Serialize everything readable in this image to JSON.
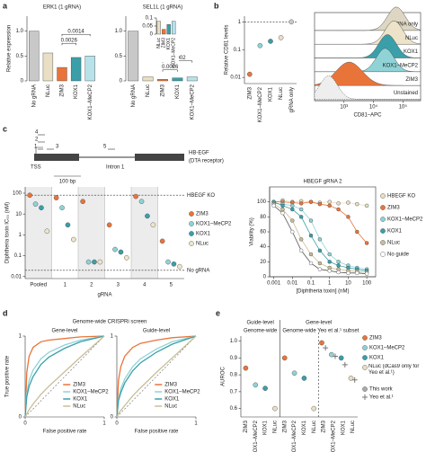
{
  "panels": [
    "a",
    "b",
    "c",
    "d",
    "e"
  ],
  "gene_diagram": {
    "guides": [
      "4",
      "2",
      "1",
      "3",
      "5"
    ],
    "tss": "TSS",
    "intron": "Intron 1",
    "gene": "HB-EGF",
    "receptor": "(DTA receptor)",
    "scale": "100 bp"
  },
  "chart_data": [
    {
      "type": "bar",
      "title": "ERK1 (1 gRNA)",
      "ylabel": "Relative expression",
      "categories": [
        "No gRNA",
        "NLuc",
        "ZIM3",
        "KOX1",
        "KOX1–MeCP2"
      ],
      "values": [
        1.0,
        0.56,
        0.27,
        0.47,
        0.5
      ],
      "colors": [
        "#c8c8c8",
        "#e9dfc4",
        "#e9743a",
        "#3a9fa8",
        "#b7e2ea"
      ],
      "ylim": [
        0,
        1.3
      ],
      "yticks": [
        0,
        0.5,
        {
          "value": 1,
          "label": "1.0"
        }
      ],
      "annotations": [
        "0.0026",
        "0.0014"
      ]
    },
    {
      "type": "bar",
      "title": "SEL1L (1 gRNA)",
      "categories": [
        "No gRNA",
        "NLuc",
        "ZIM3",
        "KOX1",
        "KOX1–MeCP2"
      ],
      "values": [
        1.0,
        0.08,
        0.03,
        0.06,
        0.08
      ],
      "colors": [
        "#c8c8c8",
        "#e9dfc4",
        "#e9743a",
        "#3a9fa8",
        "#b7e2ea"
      ],
      "ylim": [
        0,
        1.3
      ],
      "yticks": [
        0,
        0.5,
        {
          "value": 1,
          "label": "1.0"
        }
      ],
      "annotations": [
        "0.0026",
        "0.0002"
      ]
    },
    {
      "type": "bar",
      "categories": [
        "NLuc",
        "ZIM3",
        "KOX1",
        "KOX1–MeCP2"
      ],
      "values": [
        0.08,
        0.03,
        0.06,
        0.08
      ],
      "colors": [
        "#e9dfc4",
        "#e9743a",
        "#3a9fa8",
        "#b7e2ea"
      ],
      "ylim": [
        0,
        0.1
      ],
      "yticks": [
        0,
        0.05,
        0.1
      ]
    },
    {
      "type": "dot",
      "ylabel": "Relative CD81 levels",
      "log": true,
      "categories": [
        "ZIM3",
        "KOX1–MeCP2",
        "KOX1",
        "NLuc",
        "gRNA only"
      ],
      "values": [
        0.013,
        0.14,
        0.2,
        0.27,
        1
      ],
      "colors": [
        "#e9743a",
        "#8fd3d6",
        "#3a9fa8",
        "#e9dfc4",
        "#c8c8c8"
      ],
      "ylim": [
        0.006,
        1.6
      ],
      "yticks": [
        0.01,
        0.1,
        1
      ],
      "reference_lines": [
        {
          "value": 1
        }
      ]
    },
    {
      "type": "ridge",
      "xlabel": "CD81–APC",
      "xlim": [
        100,
        400000
      ],
      "xticks": [
        {
          "value": 1000,
          "label": "10³"
        },
        {
          "value": 10000,
          "label": "10⁴"
        },
        {
          "value": 100000,
          "label": "10⁵"
        }
      ],
      "series": [
        {
          "name": "gRNA only",
          "color": "#ddd6c2",
          "value": 60000
        },
        {
          "name": "NLuc",
          "color": "#ece3c8",
          "value": 50000
        },
        {
          "name": "KOX1",
          "color": "#3a9fa8",
          "value": 30000
        },
        {
          "name": "KOX1–MeCP2",
          "color": "#8fd3d6",
          "value": 25000
        },
        {
          "name": "ZIM3",
          "color": "#e9743a",
          "value": 1500
        },
        {
          "name": "Unstained",
          "color": "#eeeeee",
          "value": 300
        }
      ]
    },
    {
      "type": "dot",
      "ylabel": "Diphtheria toxin IC₅₀ (nM)",
      "xlabel": "gRNA",
      "log": true,
      "shade_alternate": true,
      "categories": [
        "Pooled",
        "1",
        "2",
        "3",
        "4",
        "5"
      ],
      "ylim": [
        0.008,
        200
      ],
      "yticks": [
        0.01,
        0.1,
        1,
        10,
        100
      ],
      "reference_lines": [
        {
          "label": "HBEGF KO",
          "value": 80
        },
        {
          "label": "No gRNA",
          "value": 0.02
        }
      ],
      "series": [
        {
          "name": "ZIM3",
          "color": "#e9743a",
          "values": [
            80,
            60,
            40,
            3,
            70,
            0.5
          ]
        },
        {
          "name": "KOX1–MeCP2",
          "color": "#8fd3d6",
          "values": [
            30,
            20,
            0.05,
            0.2,
            40,
            0.05
          ]
        },
        {
          "name": "KOX1",
          "color": "#3a9fa8",
          "values": [
            20,
            3,
            0.05,
            0.15,
            8,
            0.04
          ]
        },
        {
          "name": "NLuc",
          "color": "#efe6c8",
          "values": [
            1.5,
            0.6,
            0.05,
            0.08,
            3,
            0.03
          ]
        }
      ]
    },
    {
      "type": "line",
      "title": "HBEGF gRNA 2",
      "xlabel": "[Diphtheria toxin] (nM)",
      "ylabel": "Viability (%)",
      "logx": true,
      "markers": true,
      "legend": "right",
      "x": [
        0.001,
        0.003,
        0.01,
        0.03,
        0.1,
        0.3,
        1,
        3,
        10,
        30,
        100
      ],
      "xlim": [
        0.0006,
        300
      ],
      "xticks": [
        0.001,
        0.01,
        0.1,
        1,
        10,
        100
      ],
      "ylim": [
        0,
        120
      ],
      "yticks": [
        0,
        20,
        40,
        60,
        80,
        100
      ],
      "series": [
        {
          "name": "HBEGF KO",
          "color": "#e9dfc4",
          "values": [
            100,
            102,
            100,
            101,
            100,
            99,
            100,
            98,
            99,
            97,
            95
          ]
        },
        {
          "name": "ZIM3",
          "color": "#e9743a",
          "values": [
            100,
            100,
            99,
            98,
            100,
            97,
            95,
            90,
            80,
            60,
            45
          ]
        },
        {
          "name": "KOX1–MeCP2",
          "color": "#8fd3d6",
          "values": [
            98,
            97,
            95,
            90,
            75,
            50,
            30,
            20,
            15,
            12,
            10
          ]
        },
        {
          "name": "KOX1",
          "color": "#3a9fa8",
          "values": [
            100,
            95,
            90,
            80,
            55,
            35,
            20,
            15,
            12,
            10,
            8
          ]
        },
        {
          "name": "NLuc",
          "color": "#c9bd96",
          "values": [
            97,
            90,
            75,
            50,
            30,
            18,
            12,
            10,
            8,
            7,
            6
          ]
        },
        {
          "name": "No guide",
          "color": "#ffffff",
          "values": [
            95,
            85,
            60,
            35,
            18,
            10,
            8,
            6,
            5,
            5,
            4
          ]
        }
      ]
    },
    {
      "type": "line",
      "suptitle": "Genome-wide CRISPRi screen",
      "title": "Gene-level",
      "xlabel": "False positive rate",
      "ylabel": "True positive rate",
      "diagonal": true,
      "legend": "lower right",
      "x": [
        0,
        0.02,
        0.05,
        0.1,
        0.2,
        0.3,
        0.5,
        0.7,
        1
      ],
      "xlim": [
        0,
        1
      ],
      "xticks": [
        0,
        1
      ],
      "ylim": [
        0,
        1
      ],
      "yticks": [
        0,
        1
      ],
      "series": [
        {
          "name": "ZIM3",
          "color": "#e9743a",
          "values": [
            0,
            0.55,
            0.75,
            0.86,
            0.93,
            0.95,
            0.97,
            0.99,
            1
          ]
        },
        {
          "name": "KOX1–MeCP2",
          "color": "#8fd3d6",
          "values": [
            0,
            0.3,
            0.45,
            0.58,
            0.72,
            0.8,
            0.89,
            0.95,
            1
          ]
        },
        {
          "name": "KOX1",
          "color": "#3a9fa8",
          "values": [
            0,
            0.25,
            0.38,
            0.5,
            0.65,
            0.74,
            0.85,
            0.93,
            1
          ]
        },
        {
          "name": "NLuc",
          "color": "#c9bd96",
          "values": [
            0,
            0.04,
            0.09,
            0.16,
            0.28,
            0.38,
            0.56,
            0.74,
            1
          ]
        }
      ]
    },
    {
      "type": "line",
      "title": "Guide-level",
      "xlabel": "False positive rate",
      "diagonal": true,
      "legend": "lower right",
      "x": [
        0,
        0.02,
        0.05,
        0.1,
        0.2,
        0.3,
        0.5,
        0.7,
        1
      ],
      "xlim": [
        0,
        1
      ],
      "xticks": [
        0,
        1
      ],
      "ylim": [
        0,
        1
      ],
      "yticks": [
        0,
        1
      ],
      "series": [
        {
          "name": "ZIM3",
          "color": "#e9743a",
          "values": [
            0,
            0.45,
            0.62,
            0.75,
            0.86,
            0.91,
            0.95,
            0.98,
            1
          ]
        },
        {
          "name": "KOX1–MeCP2",
          "color": "#8fd3d6",
          "values": [
            0,
            0.22,
            0.35,
            0.47,
            0.62,
            0.72,
            0.84,
            0.93,
            1
          ]
        },
        {
          "name": "KOX1",
          "color": "#3a9fa8",
          "values": [
            0,
            0.2,
            0.3,
            0.42,
            0.57,
            0.67,
            0.8,
            0.9,
            1
          ]
        },
        {
          "name": "NLuc",
          "color": "#c9bd96",
          "values": [
            0,
            0.04,
            0.08,
            0.14,
            0.26,
            0.36,
            0.55,
            0.73,
            1
          ]
        }
      ]
    },
    {
      "type": "dot",
      "ylabel": "AUROC",
      "group_labels": [
        "Guide-level",
        "Gene-level"
      ],
      "subgroup_labels": [
        "Genome-wide",
        "Genome-wide",
        "Yeo et al.¹ subset"
      ],
      "categories": [
        "ZIM3",
        "KOX1–MeCP2",
        "KOX1",
        "NLuc",
        "ZIM3",
        "KOX1–MeCP2",
        "KOX1",
        "NLuc",
        "ZIM3",
        "KOX1–MeCP2",
        "KOX1",
        "NLuc"
      ],
      "colors": [
        "#e9743a",
        "#8fd3d6",
        "#3a9fa8",
        "#e9dfc4",
        "#e9743a",
        "#8fd3d6",
        "#3a9fa8",
        "#e9dfc4",
        "#e9743a",
        "#8fd3d6",
        "#3a9fa8",
        "#e9dfc4"
      ],
      "legend": [
        "ZIM3",
        "KOX1–MeCP2",
        "KOX1",
        "NLuc (dCas9 only for Yeo et al.¹)"
      ],
      "ylim": [
        0.55,
        1.03
      ],
      "yticks": [
        0.6,
        0.7,
        0.8,
        0.9,
        {
          "value": 1,
          "label": "1.0"
        }
      ],
      "series": [
        {
          "name": "This work",
          "values": [
            0.84,
            0.74,
            0.72,
            0.6,
            0.9,
            0.81,
            0.78,
            0.6,
            0.99,
            0.92,
            0.9,
            0.78
          ]
        },
        {
          "name": "Yeo et al.¹",
          "marker": "cross",
          "values": [
            null,
            null,
            null,
            null,
            null,
            null,
            null,
            null,
            0.96,
            0.91,
            0.86,
            0.77
          ]
        }
      ]
    }
  ]
}
